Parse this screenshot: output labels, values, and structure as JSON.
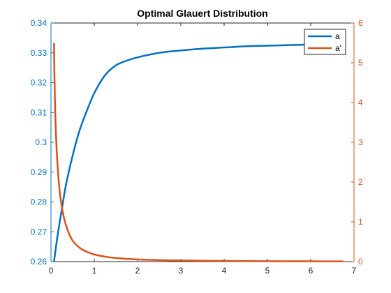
{
  "chart_data": {
    "type": "line",
    "title": "Optimal Glauert Distribution",
    "xlabel": "",
    "ylabel_left": "",
    "ylabel_right": "",
    "xlim": [
      0,
      7
    ],
    "ylim_left": [
      0.26,
      0.34
    ],
    "ylim_right": [
      0,
      6
    ],
    "x_ticks": [
      0,
      1,
      2,
      3,
      4,
      5,
      6,
      7
    ],
    "y_left_ticks": [
      0.26,
      0.27,
      0.28,
      0.29,
      0.3,
      0.31,
      0.32,
      0.33,
      0.34
    ],
    "y_right_ticks": [
      0,
      1,
      2,
      3,
      4,
      5,
      6
    ],
    "grid": false,
    "legend_position": "top-right",
    "series": [
      {
        "name": "a",
        "axis": "left",
        "color": "#0072BD",
        "x": [
          0.07,
          0.15,
          0.25,
          0.35,
          0.5,
          0.65,
          0.8,
          1.0,
          1.25,
          1.5,
          1.75,
          2.0,
          2.5,
          3.0,
          3.5,
          4.0,
          4.5,
          5.0,
          5.5,
          6.0,
          6.5,
          6.75
        ],
        "y": [
          0.26,
          0.2685,
          0.2775,
          0.286,
          0.2955,
          0.3035,
          0.3095,
          0.3165,
          0.3225,
          0.3258,
          0.3274,
          0.3285,
          0.33,
          0.3308,
          0.3314,
          0.3318,
          0.3322,
          0.3324,
          0.3326,
          0.3328,
          0.333,
          0.3331
        ]
      },
      {
        "name": "a'",
        "axis": "right",
        "color": "#D95319",
        "x": [
          0.07,
          0.08,
          0.1,
          0.13,
          0.17,
          0.22,
          0.3,
          0.4,
          0.5,
          0.65,
          0.8,
          1.0,
          1.25,
          1.5,
          2.0,
          2.5,
          3.0,
          4.0,
          5.0,
          6.0,
          6.75
        ],
        "y": [
          5.5,
          4.7,
          3.7,
          2.85,
          2.15,
          1.6,
          1.1,
          0.75,
          0.53,
          0.36,
          0.26,
          0.18,
          0.125,
          0.09,
          0.055,
          0.038,
          0.028,
          0.017,
          0.011,
          0.008,
          0.006
        ]
      }
    ]
  }
}
